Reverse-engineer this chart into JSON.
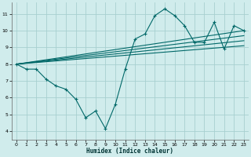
{
  "xlabel": "Humidex (Indice chaleur)",
  "background_color": "#d0ecec",
  "grid_color": "#a8d0d0",
  "line_color": "#006868",
  "xlim": [
    -0.5,
    23.5
  ],
  "ylim": [
    3.5,
    11.7
  ],
  "xticks": [
    0,
    1,
    2,
    3,
    4,
    5,
    6,
    7,
    8,
    9,
    10,
    11,
    12,
    13,
    14,
    15,
    16,
    17,
    18,
    19,
    20,
    21,
    22,
    23
  ],
  "yticks": [
    4,
    5,
    6,
    7,
    8,
    9,
    10,
    11
  ],
  "main_x": [
    0,
    1,
    2,
    3,
    4,
    5,
    6,
    7,
    8,
    9,
    10,
    11,
    12,
    13,
    14,
    15,
    16,
    17,
    18,
    19,
    20,
    21,
    22,
    23
  ],
  "main_y": [
    8.0,
    7.7,
    7.7,
    7.1,
    6.7,
    6.5,
    5.9,
    4.8,
    5.2,
    4.15,
    5.6,
    7.7,
    9.5,
    9.8,
    10.9,
    11.3,
    10.9,
    10.3,
    9.3,
    9.3,
    10.5,
    8.9,
    10.3,
    10.0
  ],
  "trend_lines": [
    {
      "x0": 0,
      "y0": 8.0,
      "x1": 23,
      "y1": 9.1
    },
    {
      "x0": 0,
      "y0": 8.0,
      "x1": 23,
      "y1": 9.4
    },
    {
      "x0": 0,
      "y0": 8.0,
      "x1": 23,
      "y1": 9.7
    },
    {
      "x0": 0,
      "y0": 8.0,
      "x1": 23,
      "y1": 10.0
    }
  ]
}
